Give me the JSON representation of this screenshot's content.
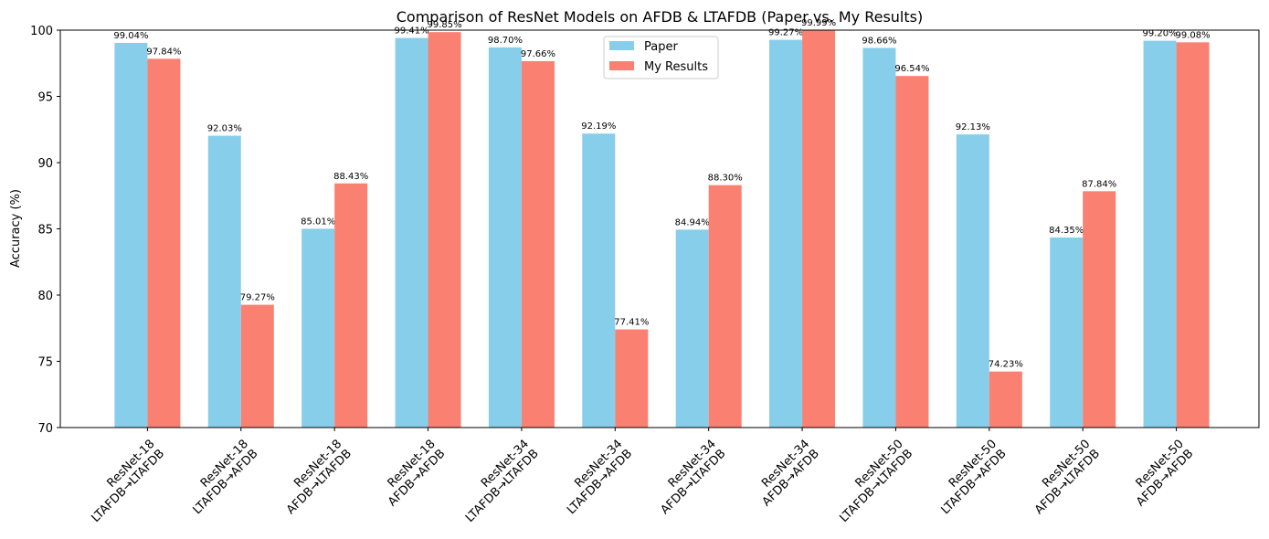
{
  "chart_data": {
    "type": "bar",
    "title": "Comparison of ResNet Models on AFDB & LTAFDB (Paper vs. My Results)",
    "xlabel": "",
    "ylabel": "Accuracy (%)",
    "ylim": [
      70,
      100
    ],
    "yticks": [
      70,
      75,
      80,
      85,
      90,
      95,
      100
    ],
    "grid": false,
    "legend_position": "top-center",
    "categories": [
      [
        "ResNet-18",
        "LTAFDB→LTAFDB"
      ],
      [
        "ResNet-18",
        "LTAFDB→AFDB"
      ],
      [
        "ResNet-18",
        "AFDB→LTAFDB"
      ],
      [
        "ResNet-18",
        "AFDB→AFDB"
      ],
      [
        "ResNet-34",
        "LTAFDB→LTAFDB"
      ],
      [
        "ResNet-34",
        "LTAFDB→AFDB"
      ],
      [
        "ResNet-34",
        "AFDB→LTAFDB"
      ],
      [
        "ResNet-34",
        "AFDB→AFDB"
      ],
      [
        "ResNet-50",
        "LTAFDB→LTAFDB"
      ],
      [
        "ResNet-50",
        "LTAFDB→AFDB"
      ],
      [
        "ResNet-50",
        "AFDB→LTAFDB"
      ],
      [
        "ResNet-50",
        "AFDB→AFDB"
      ]
    ],
    "series": [
      {
        "name": "Paper",
        "color": "#87ceeb",
        "values": [
          99.04,
          92.03,
          85.01,
          99.41,
          98.7,
          92.19,
          84.94,
          99.27,
          98.66,
          92.13,
          84.35,
          99.2
        ],
        "labels": [
          "99.04%",
          "92.03%",
          "85.01%",
          "99.41%",
          "98.70%",
          "92.19%",
          "84.94%",
          "99.27%",
          "98.66%",
          "92.13%",
          "84.35%",
          "99.20%"
        ]
      },
      {
        "name": "My Results",
        "color": "#fa8072",
        "values": [
          97.84,
          79.27,
          88.43,
          99.85,
          97.66,
          77.41,
          88.3,
          99.99,
          96.54,
          74.23,
          87.84,
          99.08
        ],
        "labels": [
          "97.84%",
          "79.27%",
          "88.43%",
          "99.85%",
          "97.66%",
          "77.41%",
          "88.30%",
          "99.99%",
          "96.54%",
          "74.23%",
          "87.84%",
          "99.08%"
        ]
      }
    ]
  }
}
